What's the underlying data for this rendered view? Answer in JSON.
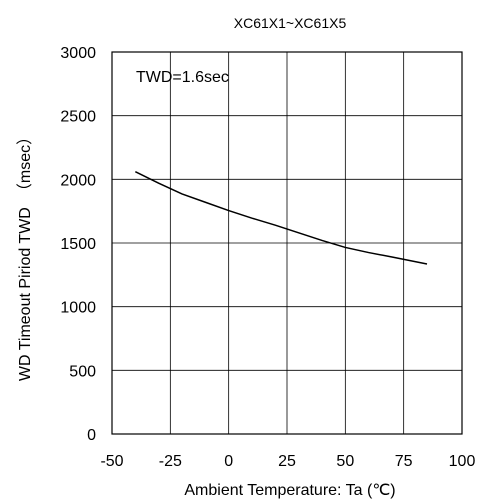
{
  "chart_data": {
    "type": "line",
    "title": "XC61X1~XC61X5",
    "xlabel": "Ambient Temperature: Ta (℃)",
    "ylabel": "WD Timeout Piriod TWD　（msec）",
    "annotation": "TWD=1.6sec",
    "xlim": [
      -50,
      100
    ],
    "ylim": [
      0,
      3000
    ],
    "xticks": [
      -50,
      -25,
      0,
      25,
      50,
      75,
      100
    ],
    "yticks": [
      0,
      500,
      1000,
      1500,
      2000,
      2500,
      3000
    ],
    "grid": true,
    "series": [
      {
        "x": [
          -40,
          -30,
          -20,
          -10,
          0,
          10,
          20,
          30,
          40,
          50,
          60,
          70,
          85
        ],
        "y": [
          2060,
          1970,
          1885,
          1820,
          1755,
          1695,
          1640,
          1580,
          1520,
          1465,
          1425,
          1390,
          1335
        ]
      }
    ]
  }
}
